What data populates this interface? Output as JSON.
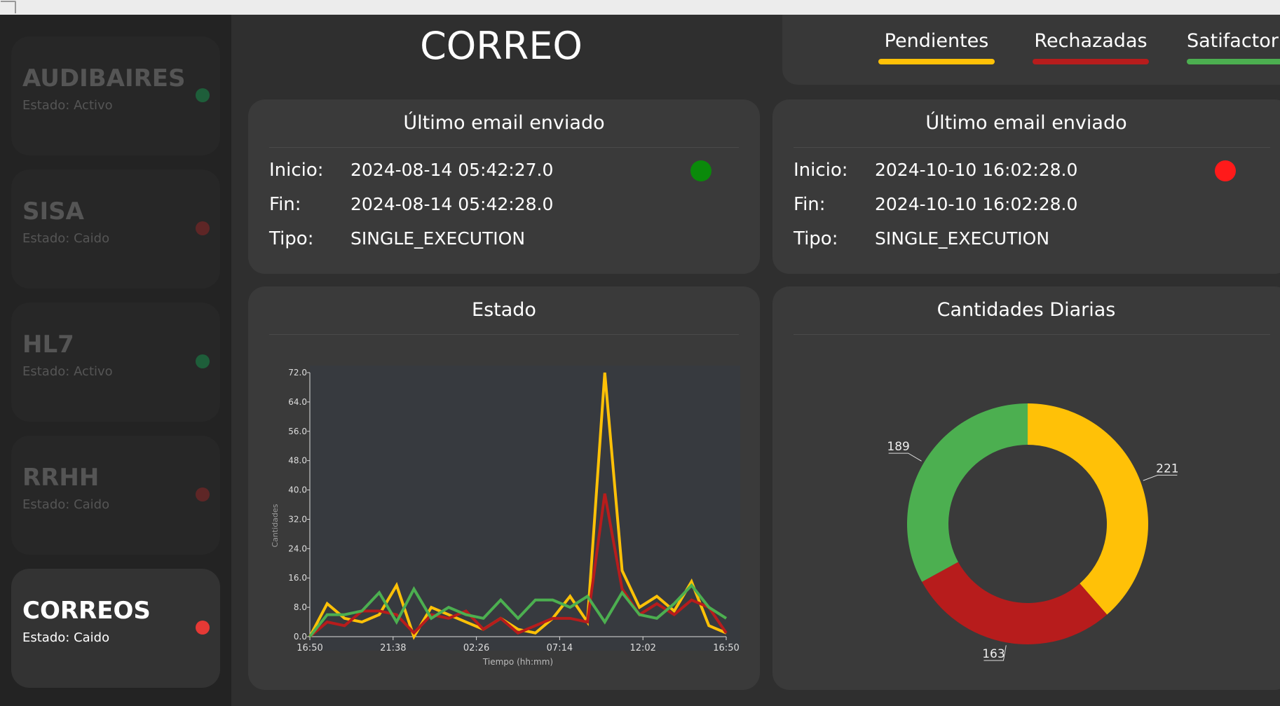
{
  "sidebar": {
    "items": [
      {
        "name": "AUDIBAIRES",
        "status": "Estado: Activo",
        "color": "#1e5e3a"
      },
      {
        "name": "SISA",
        "status": "Estado: Caido",
        "color": "#5e2626"
      },
      {
        "name": "HL7",
        "status": "Estado: Activo",
        "color": "#1e5e3a"
      },
      {
        "name": "RRHH",
        "status": "Estado: Caido",
        "color": "#5e2626"
      },
      {
        "name": "CORREOS",
        "status": "Estado: Caido",
        "color": "#e53935",
        "active": true
      }
    ]
  },
  "header": {
    "title": "CORREO"
  },
  "tabs": [
    {
      "label": "Pendientes",
      "color": "#ffc107"
    },
    {
      "label": "Rechazadas",
      "color": "#b71c1c"
    },
    {
      "label": "Satifactorias",
      "color": "#4caf50"
    }
  ],
  "cards": [
    {
      "title": "Último email enviado",
      "inicio_label": "Inicio:",
      "inicio": "2024-08-14 05:42:27.0",
      "fin_label": "Fin:",
      "fin": "2024-08-14 05:42:28.0",
      "tipo_label": "Tipo:",
      "tipo": "SINGLE_EXECUTION",
      "status_color": "#0a8a0a"
    },
    {
      "title": "Último email enviado",
      "inicio_label": "Inicio:",
      "inicio": "2024-10-10 16:02:28.0",
      "fin_label": "Fin:",
      "fin": "2024-10-10 16:02:28.0",
      "tipo_label": "Tipo:",
      "tipo": "SINGLE_EXECUTION",
      "status_color": "#ff1a1a"
    }
  ],
  "chart_titles": {
    "line": "Estado",
    "donut": "Cantidades Diarias"
  },
  "chart_data": [
    {
      "type": "line",
      "xlabel": "Tiempo (hh:mm)",
      "ylabel": "Cantidades",
      "ylim": [
        0,
        72
      ],
      "yticks": [
        "0.0",
        "8.0",
        "16.0",
        "24.0",
        "32.0",
        "40.0",
        "48.0",
        "56.0",
        "64.0",
        "72.0"
      ],
      "xticks": [
        "16:50",
        "21:38",
        "02:26",
        "07:14",
        "12:02",
        "16:50"
      ],
      "series": [
        {
          "color": "#ffc107",
          "values": [
            0,
            9,
            5,
            4,
            6,
            14,
            0,
            8,
            6,
            4,
            2,
            5,
            2,
            1,
            5,
            11,
            4,
            72,
            18,
            8,
            11,
            7,
            15,
            3,
            1
          ]
        },
        {
          "color": "#b71c1c",
          "values": [
            0,
            4,
            3,
            7,
            7,
            6,
            1,
            6,
            5,
            7,
            2,
            5,
            1,
            3,
            5,
            5,
            4,
            39,
            13,
            6,
            9,
            6,
            10,
            8,
            1
          ]
        },
        {
          "color": "#4caf50",
          "values": [
            0,
            6,
            6,
            7,
            12,
            4,
            13,
            5,
            8,
            6,
            5,
            10,
            5,
            10,
            10,
            8,
            11,
            4,
            12,
            6,
            5,
            9,
            14,
            8,
            5
          ]
        }
      ]
    },
    {
      "type": "pie",
      "donut": true,
      "values": [
        221,
        163,
        189
      ],
      "labels": [
        "221",
        "163",
        "189"
      ],
      "colors": [
        "#ffc107",
        "#b71c1c",
        "#4caf50"
      ]
    }
  ]
}
